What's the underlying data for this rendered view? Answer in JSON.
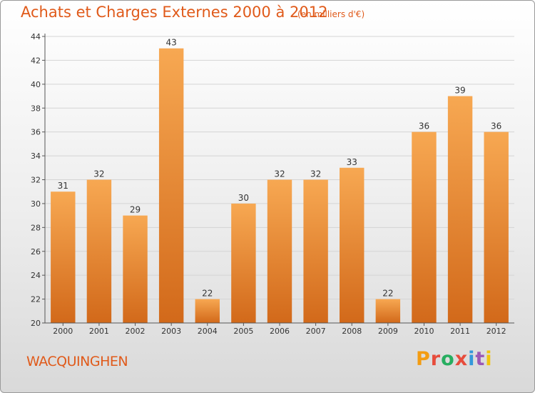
{
  "header": {
    "title": "Achats et Charges Externes 2000 à 2012",
    "unit": "(en milliers d'€)"
  },
  "footer": {
    "commune": "WACQUINGHEN",
    "logo": "Proxiti"
  },
  "logo_colors": [
    "#f39c12",
    "#e74c3c",
    "#27ae60",
    "#e74c3c",
    "#3498db",
    "#9b59b6",
    "#f1c40f"
  ],
  "chart_data": {
    "type": "bar",
    "title": "Achats et Charges Externes 2000 à 2012",
    "xlabel": "",
    "ylabel": "",
    "categories": [
      "2000",
      "2001",
      "2002",
      "2003",
      "2004",
      "2005",
      "2006",
      "2007",
      "2008",
      "2009",
      "2010",
      "2011",
      "2012"
    ],
    "values": [
      31,
      32,
      29,
      43,
      22,
      30,
      32,
      32,
      33,
      22,
      36,
      39,
      36
    ],
    "ylim": [
      20,
      44
    ],
    "yticks": [
      20,
      22,
      24,
      26,
      28,
      30,
      32,
      34,
      36,
      38,
      40,
      42,
      44
    ],
    "grid": true,
    "bar_color_top": "#f7a852",
    "bar_color_bottom": "#d2691a"
  }
}
